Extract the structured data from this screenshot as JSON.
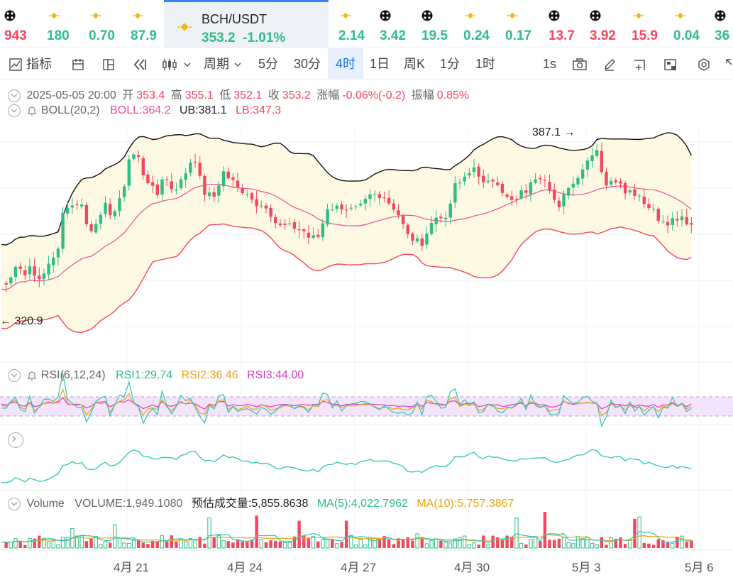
{
  "ticker": {
    "items": [
      {
        "icon": "network-icon",
        "value": "943",
        "color": "#f6465d"
      },
      {
        "icon": "binance-icon",
        "value": "180",
        "color": "#2ebd85"
      },
      {
        "icon": "binance-icon",
        "value": "0.70",
        "color": "#2ebd85"
      },
      {
        "icon": "binance-icon",
        "value": "87.9",
        "color": "#2ebd85"
      },
      {
        "icon": "binance-icon",
        "value": "2.14",
        "color": "#2ebd85"
      },
      {
        "icon": "network-icon",
        "value": "3.42",
        "color": "#2ebd85"
      },
      {
        "icon": "network-icon",
        "value": "19.5",
        "color": "#2ebd85"
      },
      {
        "icon": "binance-icon",
        "value": "0.24",
        "color": "#2ebd85"
      },
      {
        "icon": "binance-icon",
        "value": "0.17",
        "color": "#2ebd85"
      },
      {
        "icon": "network-icon",
        "value": "13.7",
        "color": "#f6465d"
      },
      {
        "icon": "network-icon",
        "value": "3.92",
        "color": "#f6465d"
      },
      {
        "icon": "binance-icon",
        "value": "15.9",
        "color": "#f6465d"
      },
      {
        "icon": "binance-icon",
        "value": "0.04",
        "color": "#2ebd85"
      },
      {
        "icon": "network-icon",
        "value": "36",
        "color": "#2ebd85"
      }
    ],
    "active": {
      "symbol": "BCH/USDT",
      "price": "353.2",
      "change": "-1.01%"
    }
  },
  "toolbar": {
    "indicators": "指标",
    "period": "周期",
    "intervals": [
      "5分",
      "30分",
      "4时",
      "1日",
      "周K",
      "1分",
      "1时"
    ],
    "selected_interval": "4时",
    "speed": "1s"
  },
  "ohlc": {
    "date": "2025-05-05 20:00",
    "open_label": "开",
    "open": "353.4",
    "high_label": "高",
    "high": "355.1",
    "low_label": "低",
    "low": "352.1",
    "close_label": "收",
    "close": "353.2",
    "change_label": "涨幅",
    "change": "-0.06%(-0.2)",
    "amp_label": "振幅",
    "amp": "0.85%"
  },
  "boll": {
    "label": "BOLL(20,2)",
    "mid": "BOLL:364.2",
    "ub": "UB:381.1",
    "lb": "LB:347.3"
  },
  "rsi": {
    "label": "RSI(6,12,24)",
    "rsi1": "RSI1:29.74",
    "rsi2": "RSI2:36.46",
    "rsi3": "RSI3:44.00"
  },
  "volume": {
    "label": "Volume",
    "volume": "VOLUME:1,949.1080",
    "estimate": "预估成交量:5,855.8638",
    "ma5": "MA(5):4,022.7962",
    "ma10": "MA(10):5,757.3867"
  },
  "chart_data": {
    "type": "candlestick",
    "max_price_label": "387.1",
    "min_price_label": "320.9",
    "x_tick_labels": [
      "4月 21",
      "4月 24",
      "4月 27",
      "4月 30",
      "5月 3",
      "5月 6"
    ],
    "colors": {
      "up": "#2ebd85",
      "down": "#f6465d",
      "boll_mid": "#e94f9b",
      "boll_upper": "#111111",
      "boll_lower": "#f6465d",
      "rsi1": "#2ec4b6",
      "rsi2": "#f0a20f",
      "rsi3": "#d63dbd"
    }
  }
}
